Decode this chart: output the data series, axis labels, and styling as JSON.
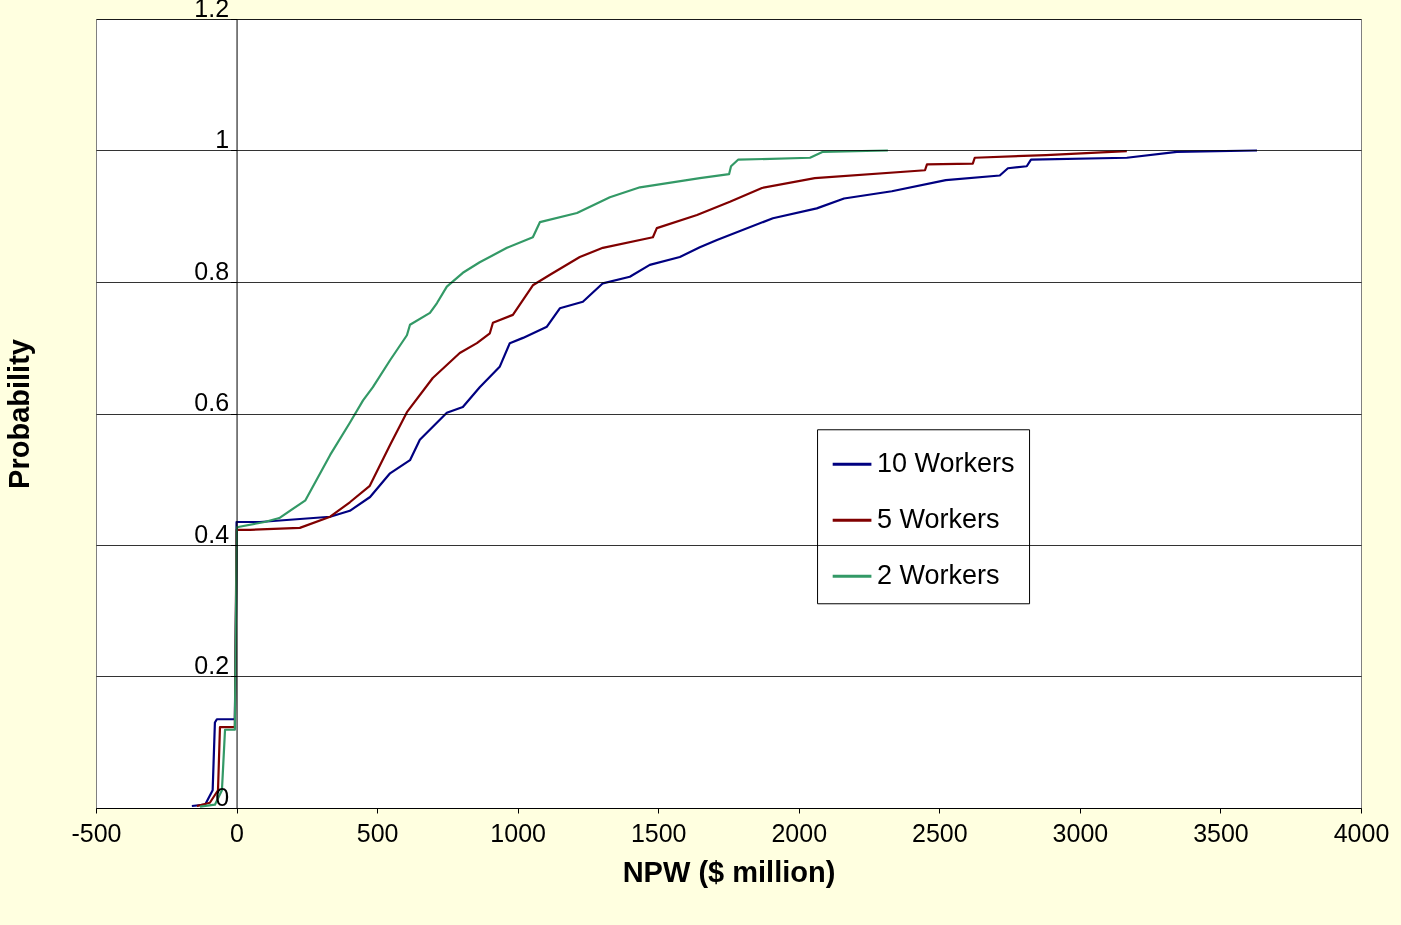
{
  "chart_data": {
    "type": "line",
    "xlabel": "NPW ($ million)",
    "ylabel": "Probability",
    "xlim": [
      -500,
      4000
    ],
    "xticks": [
      -500,
      0,
      500,
      1000,
      1500,
      2000,
      2500,
      3000,
      3500,
      4000
    ],
    "ylim": [
      0,
      1.2
    ],
    "yticks": [
      0,
      0.2,
      0.4,
      0.6,
      0.8,
      1,
      1.2
    ],
    "grid": "y",
    "legend": "right",
    "marker": "none",
    "line_style": "solid",
    "series": [
      {
        "name": "10 Workers",
        "color": "#000080",
        "x": [
          -159,
          -112,
          -85,
          -77,
          -70,
          -6,
          -2,
          0,
          83,
          333,
          403,
          475,
          546,
          617,
          652,
          748,
          805,
          865,
          936,
          972,
          1019,
          1104,
          1150,
          1232,
          1303,
          1399,
          1470,
          1577,
          1648,
          1709,
          1908,
          2064,
          2161,
          2331,
          2523,
          2715,
          2744,
          2811,
          2826,
          3167,
          3345,
          3630
        ],
        "values": [
          0.003,
          0.005,
          0.027,
          0.13,
          0.135,
          0.135,
          0.3,
          0.435,
          0.435,
          0.443,
          0.452,
          0.473,
          0.509,
          0.529,
          0.56,
          0.601,
          0.61,
          0.64,
          0.671,
          0.707,
          0.715,
          0.732,
          0.76,
          0.77,
          0.798,
          0.808,
          0.826,
          0.838,
          0.853,
          0.864,
          0.897,
          0.912,
          0.927,
          0.938,
          0.955,
          0.962,
          0.973,
          0.976,
          0.986,
          0.989,
          0.998,
          1.0
        ]
      },
      {
        "name": "5 Workers",
        "color": "#800000",
        "x": [
          -141,
          -95,
          -66,
          -59,
          -6,
          0,
          48,
          225,
          333,
          403,
          474,
          546,
          606,
          698,
          794,
          855,
          901,
          912,
          983,
          1054,
          1115,
          1221,
          1303,
          1481,
          1495,
          1638,
          1755,
          1869,
          2057,
          2449,
          2456,
          2619,
          2626,
          2879,
          3167
        ],
        "values": [
          0.003,
          0.008,
          0.027,
          0.123,
          0.123,
          0.423,
          0.423,
          0.426,
          0.443,
          0.465,
          0.49,
          0.552,
          0.602,
          0.654,
          0.692,
          0.707,
          0.722,
          0.738,
          0.75,
          0.795,
          0.811,
          0.838,
          0.852,
          0.868,
          0.882,
          0.902,
          0.922,
          0.943,
          0.958,
          0.97,
          0.979,
          0.98,
          0.989,
          0.993,
          0.999
        ]
      },
      {
        "name": "2 Workers",
        "color": "#339966",
        "x": [
          -130,
          -77,
          -52,
          -41,
          -6,
          1,
          100,
          152,
          245,
          333,
          403,
          450,
          485,
          546,
          606,
          617,
          688,
          713,
          748,
          805,
          865,
          962,
          1054,
          1079,
          1211,
          1328,
          1435,
          1648,
          1752,
          1759,
          1784,
          2040,
          2086,
          2317
        ],
        "values": [
          0.002,
          0.005,
          0.027,
          0.119,
          0.119,
          0.427,
          0.435,
          0.441,
          0.468,
          0.537,
          0.586,
          0.62,
          0.64,
          0.681,
          0.719,
          0.735,
          0.753,
          0.768,
          0.793,
          0.814,
          0.83,
          0.852,
          0.868,
          0.891,
          0.905,
          0.929,
          0.944,
          0.958,
          0.964,
          0.976,
          0.986,
          0.989,
          0.998,
          1.0
        ]
      }
    ]
  }
}
